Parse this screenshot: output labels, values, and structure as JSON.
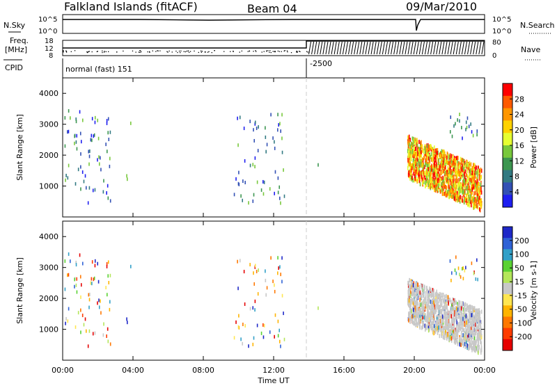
{
  "header": {
    "site": "Falkland Islands (fitACF)",
    "beam": "Beam 04",
    "date": "09/Mar/2010"
  },
  "strips": {
    "nsky_label": "N.Sky",
    "nsearch_label": "N.Search",
    "freq_label_1": "Freq.",
    "freq_label_2": "[MHz]",
    "nave_label": "Nave",
    "cpid_label": "CPID",
    "nsky_ticks": [
      "10^5",
      "10^0"
    ],
    "nsearch_ticks": [
      "10^5",
      "10^0"
    ],
    "freq_ticks": [
      "18",
      "12",
      "8"
    ],
    "nave_ticks": [
      "80",
      "0"
    ],
    "cpid_left": "normal (fast) 151",
    "cpid_right": "-2500"
  },
  "chart_data": [
    {
      "type": "scatter",
      "panel": "power",
      "ylabel": "Slant Range [km]",
      "yticks": [
        "4000",
        "3000",
        "2000",
        "1000"
      ],
      "ylim": [
        0,
        4500
      ],
      "xlim": [
        0,
        24
      ],
      "colorbar": {
        "label": "Power [dB]",
        "ticks": [
          "28",
          "24",
          "20",
          "16",
          "12",
          "8",
          "4"
        ],
        "colors": [
          "#ff0000",
          "#ff5a00",
          "#ff9600",
          "#ffd200",
          "#e6ff32",
          "#78c83c",
          "#3c9650",
          "#327a82",
          "#3250b4",
          "#1e1ef0"
        ]
      }
    },
    {
      "type": "scatter",
      "panel": "velocity",
      "ylabel": "Slant Range [km]",
      "yticks": [
        "4000",
        "3000",
        "2000",
        "1000"
      ],
      "ylim": [
        0,
        4500
      ],
      "xlim": [
        0,
        24
      ],
      "xlabel": "Time UT",
      "xticks": [
        "00:00",
        "04:00",
        "08:00",
        "12:00",
        "16:00",
        "20:00",
        "00:00"
      ],
      "colorbar": {
        "label": "Velocity [m s-1]",
        "ticks": [
          "200",
          "100",
          "50",
          "15",
          "-15",
          "-50",
          "-100",
          "-200"
        ],
        "colors": [
          "#1e28c8",
          "#2f62d6",
          "#32a0c8",
          "#5ad232",
          "#b4e65a",
          "#c8c8c8",
          "#ffe650",
          "#ffb400",
          "#ff7800",
          "#ff3c00",
          "#e60000"
        ]
      }
    }
  ]
}
